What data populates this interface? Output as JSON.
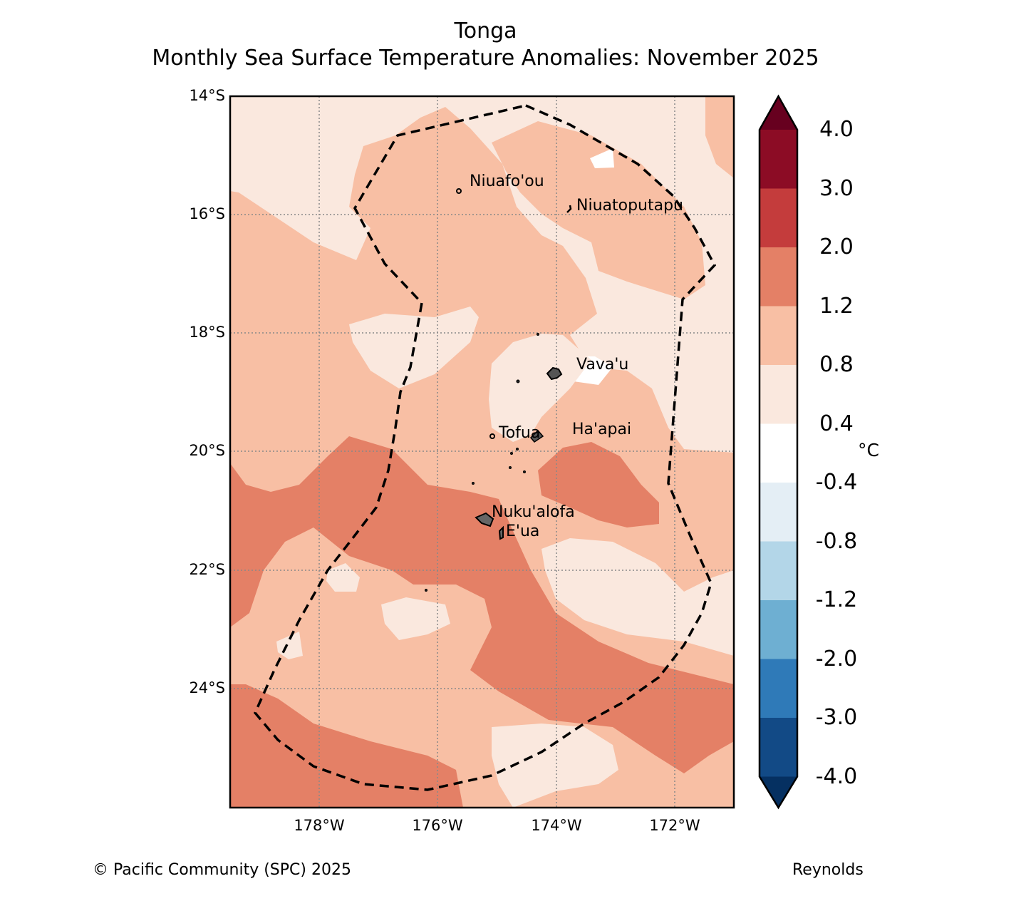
{
  "header": {
    "region": "Tonga",
    "subtitle": "Monthly Sea Surface Temperature Anomalies: November 2025"
  },
  "axes": {
    "lat_labels": [
      "14°S",
      "16°S",
      "18°S",
      "20°S",
      "22°S",
      "24°S"
    ],
    "lon_labels": [
      "178°W",
      "176°W",
      "174°W",
      "172°W"
    ]
  },
  "places": {
    "niuafoou": "Niuafo'ou",
    "niuatoputapu": "Niuatoputapu",
    "vavau": "Vava'u",
    "tofua": "Tofua",
    "haapai": "Ha'apai",
    "nukualofa": "Nuku'alofa",
    "eua": "E'ua"
  },
  "colorbar": {
    "unit": "°C",
    "labels": [
      "4.0",
      "3.0",
      "2.0",
      "1.2",
      "0.8",
      "0.4",
      "-0.4",
      "-0.8",
      "-1.2",
      "-2.0",
      "-3.0",
      "-4.0"
    ],
    "colors": [
      "#67001f",
      "#8c0c25",
      "#c43c3c",
      "#e48066",
      "#f8bfa4",
      "#fae8de",
      "#ffffff",
      "#e4eef5",
      "#b3d6e8",
      "#6eafd2",
      "#2f7ab8",
      "#124a86",
      "#053061"
    ]
  },
  "footer": {
    "credit": "© Pacific Community (SPC) 2025",
    "source": "Reynolds"
  }
}
